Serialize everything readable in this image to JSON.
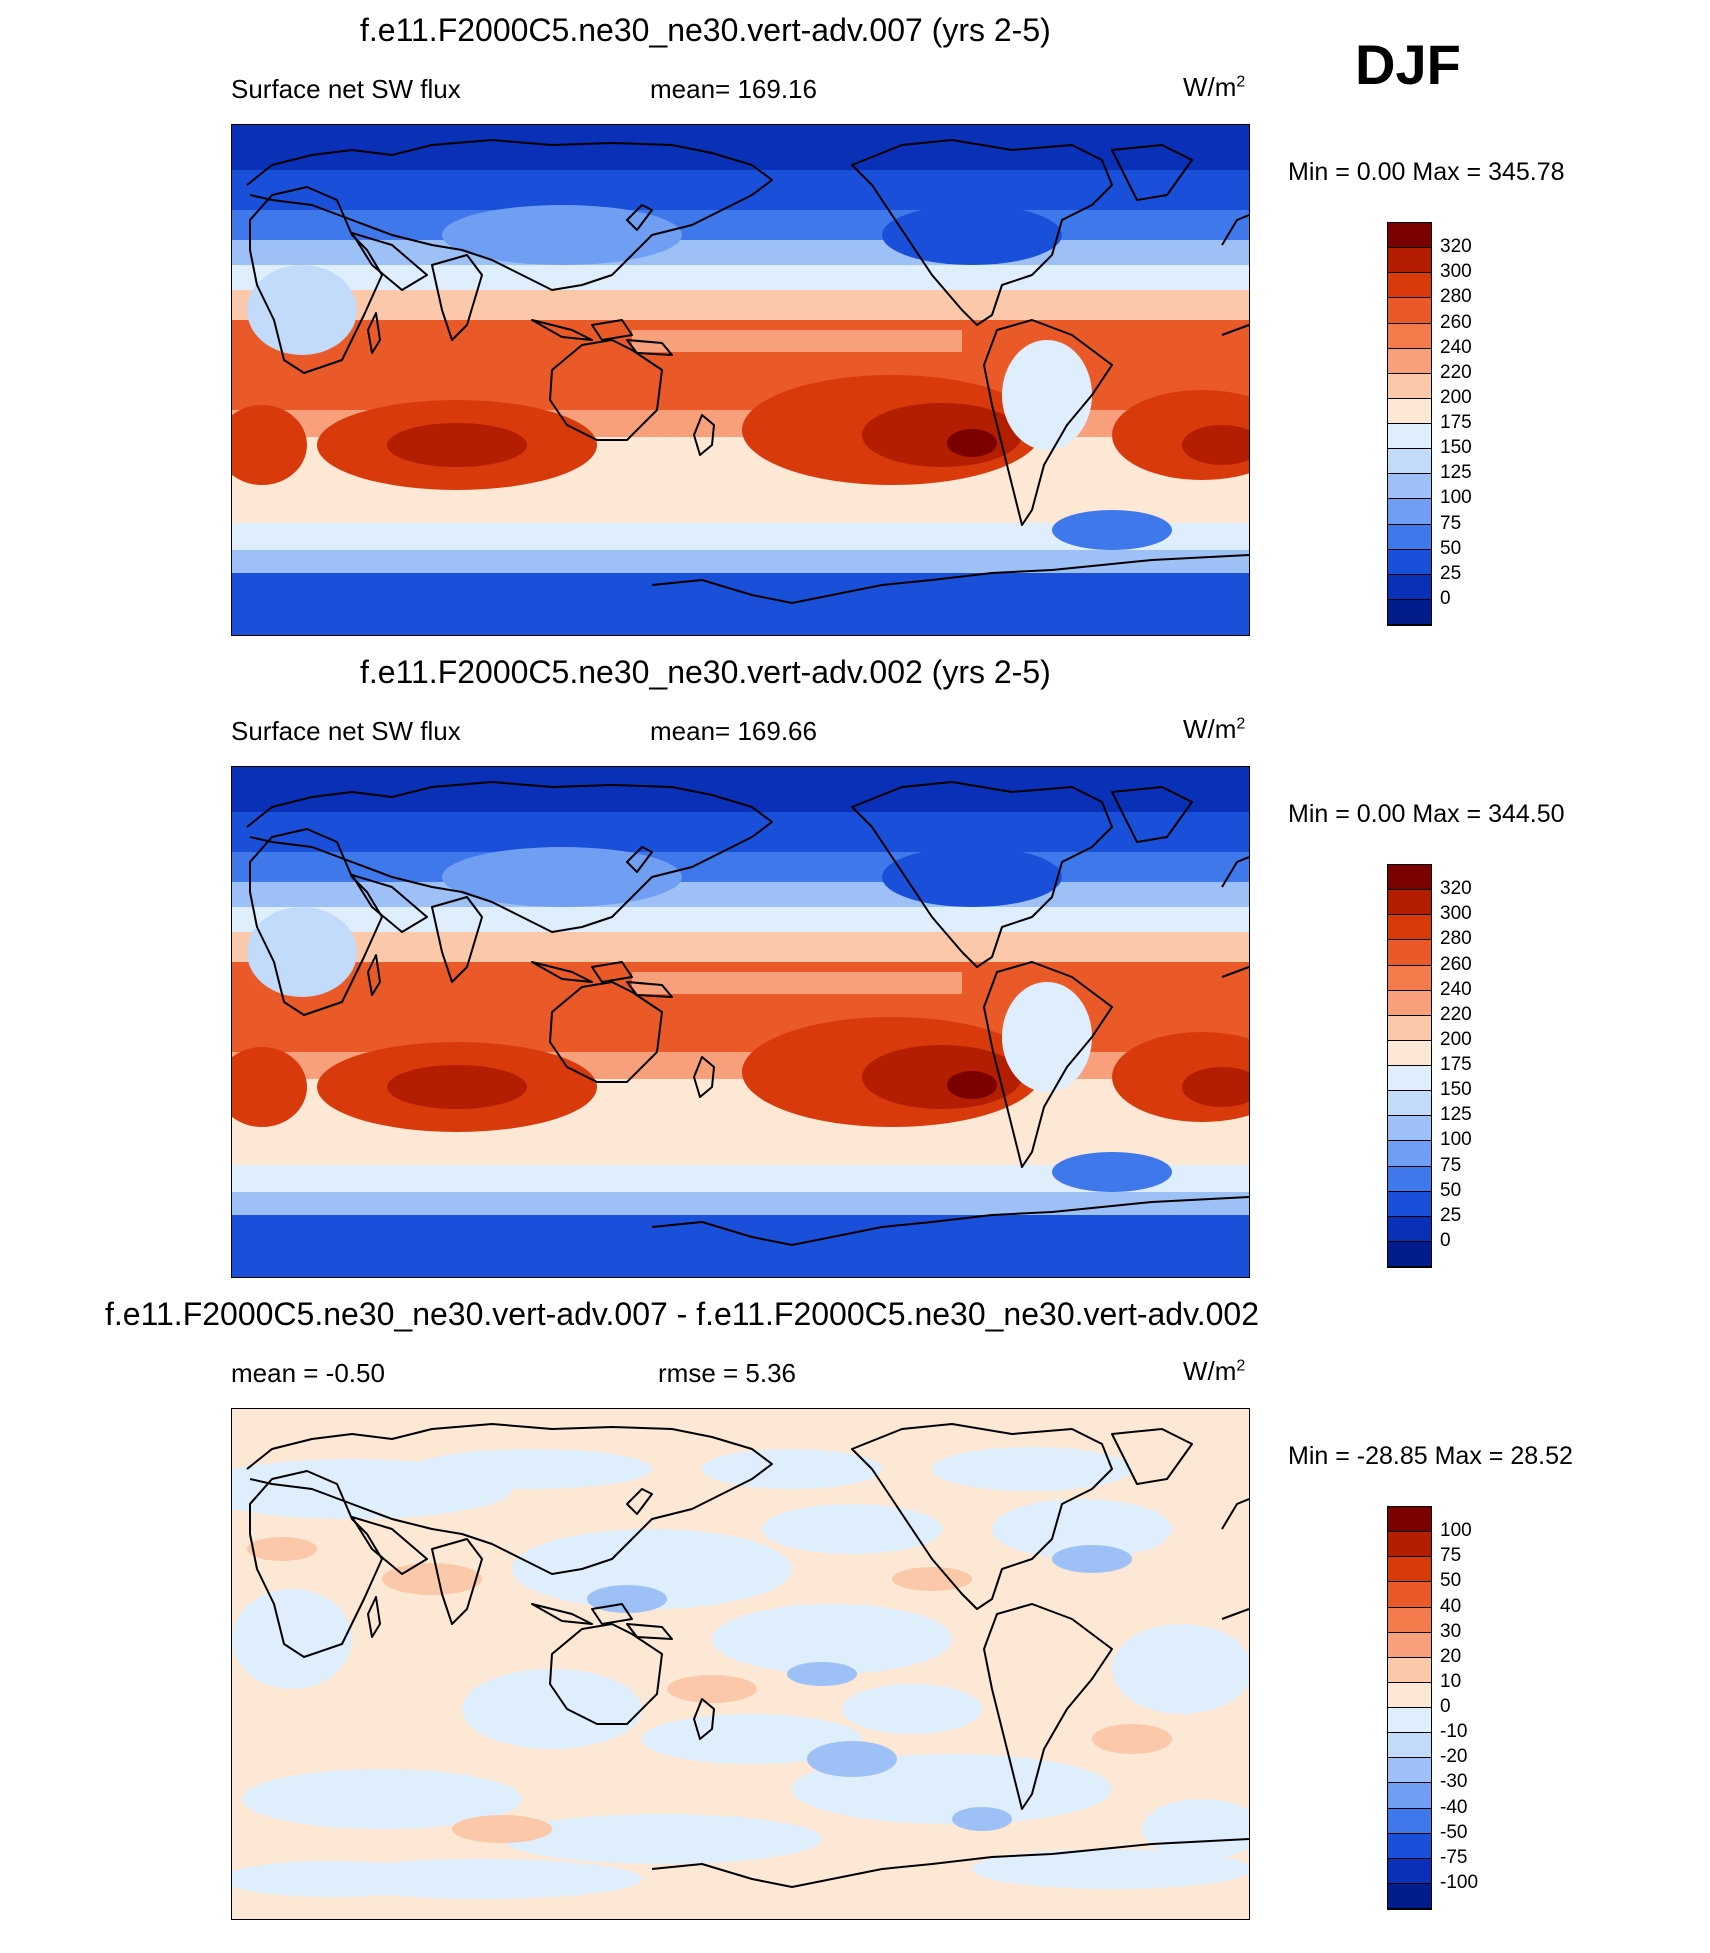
{
  "season": "DJF",
  "panels": [
    {
      "id": "panel-1",
      "title": "f.e11.F2000C5.ne30_ne30.vert-adv.007 (yrs 2-5)",
      "left_text": "Surface net SW flux",
      "center_text": "mean= 169.16",
      "units": "W/m",
      "units_sup": "2",
      "minmax": "Min =    0.00 Max = 345.78",
      "map_type": "field",
      "colorbar": {
        "labels": [
          "320",
          "300",
          "280",
          "260",
          "240",
          "220",
          "200",
          "175",
          "150",
          "125",
          "100",
          "75",
          "50",
          "25",
          "0"
        ],
        "colors": [
          "#7b0000",
          "#b31d00",
          "#d83a0c",
          "#ea5a28",
          "#f37a4a",
          "#f7a07b",
          "#fbc9a9",
          "#fde8d6",
          "#dfeefd",
          "#c2dbfb",
          "#9dc0f7",
          "#6f9ef2",
          "#3e78ea",
          "#1a50d9",
          "#0a30b8",
          "#001d8c"
        ]
      }
    },
    {
      "id": "panel-2",
      "title": "f.e11.F2000C5.ne30_ne30.vert-adv.002 (yrs 2-5)",
      "left_text": "Surface net SW flux",
      "center_text": "mean= 169.66",
      "units": "W/m",
      "units_sup": "2",
      "minmax": "Min =    0.00 Max = 344.50",
      "map_type": "field",
      "colorbar": {
        "labels": [
          "320",
          "300",
          "280",
          "260",
          "240",
          "220",
          "200",
          "175",
          "150",
          "125",
          "100",
          "75",
          "50",
          "25",
          "0"
        ],
        "colors": [
          "#7b0000",
          "#b31d00",
          "#d83a0c",
          "#ea5a28",
          "#f37a4a",
          "#f7a07b",
          "#fbc9a9",
          "#fde8d6",
          "#dfeefd",
          "#c2dbfb",
          "#9dc0f7",
          "#6f9ef2",
          "#3e78ea",
          "#1a50d9",
          "#0a30b8",
          "#001d8c"
        ]
      }
    },
    {
      "id": "panel-3",
      "title": "f.e11.F2000C5.ne30_ne30.vert-adv.007 - f.e11.F2000C5.ne30_ne30.vert-adv.002",
      "left_text": "mean =  -0.50",
      "center_text": "rmse =   5.36",
      "units": "W/m",
      "units_sup": "2",
      "minmax": "Min = -28.85 Max =  28.52",
      "map_type": "diff",
      "colorbar": {
        "labels": [
          "100",
          "75",
          "50",
          "40",
          "30",
          "20",
          "10",
          "0",
          "-10",
          "-20",
          "-30",
          "-40",
          "-50",
          "-75",
          "-100"
        ],
        "colors": [
          "#7b0000",
          "#b31d00",
          "#d83a0c",
          "#ea5a28",
          "#f37a4a",
          "#f7a07b",
          "#fbc9a9",
          "#fde8d6",
          "#dfeefd",
          "#c2dbfb",
          "#9dc0f7",
          "#6f9ef2",
          "#3e78ea",
          "#1a50d9",
          "#0a30b8",
          "#001d8c"
        ]
      }
    }
  ]
}
